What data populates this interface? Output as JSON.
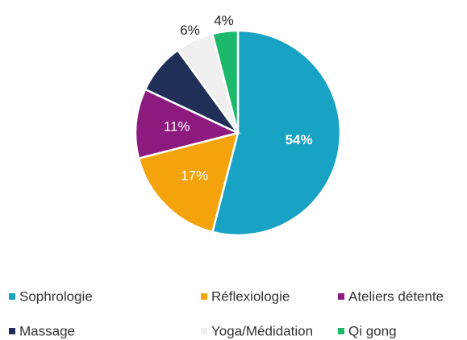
{
  "chart_data": {
    "type": "pie",
    "categories": [
      "Sophrologie",
      "Réflexiologie",
      "Ateliers détente",
      "Massage",
      "Yoga/Médidation",
      "Qi gong"
    ],
    "values": [
      54,
      17,
      11,
      8,
      6,
      4
    ],
    "value_labels": [
      "54%",
      "17%",
      "11%",
      null,
      "6%",
      "4%"
    ],
    "colors": [
      "#18a2c4",
      "#f5a30c",
      "#8d1b7f",
      "#1f2f57",
      "#efefef",
      "#1cb86b"
    ],
    "legend": "bottom"
  }
}
